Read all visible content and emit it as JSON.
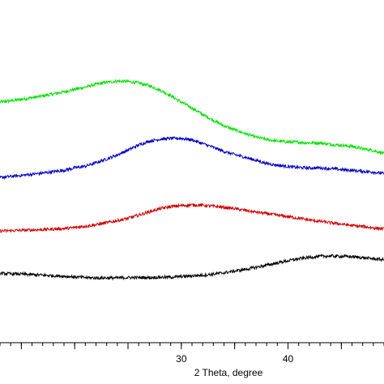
{
  "chart_data": {
    "type": "line",
    "xlabel": "2 Theta, degree",
    "ylabel": "",
    "xlim": [
      13,
      49
    ],
    "ylim": [
      0,
      100
    ],
    "x_ticks": [
      30,
      40
    ],
    "x_tick_labels": [
      "30",
      "40"
    ],
    "grid": false,
    "legend": "none",
    "series": [
      {
        "color": "#00e000",
        "x": [
          13,
          15,
          17,
          19,
          20,
          21,
          22,
          23,
          24,
          25,
          26,
          27,
          28,
          29,
          30,
          31,
          32,
          33,
          34,
          35,
          36,
          37,
          38,
          39,
          40,
          41,
          42,
          43,
          44,
          45,
          46,
          47,
          48,
          49
        ],
        "values": [
          70.2,
          71.0,
          72.0,
          73.2,
          73.9,
          74.6,
          75.4,
          76.0,
          76.3,
          76.2,
          75.8,
          75.0,
          73.7,
          72.1,
          70.2,
          68.5,
          66.6,
          64.9,
          63.3,
          62.1,
          61.0,
          60.0,
          59.3,
          58.8,
          58.6,
          58.5,
          58.3,
          58.3,
          57.9,
          57.6,
          57.3,
          56.6,
          56.1,
          55.2
        ]
      },
      {
        "color": "#0000c0",
        "x": [
          13,
          15,
          17,
          19,
          20,
          21,
          22,
          23,
          24,
          25,
          26,
          27,
          28,
          29,
          30,
          31,
          32,
          33,
          34,
          35,
          36,
          37,
          38,
          39,
          40,
          41,
          42,
          43,
          44,
          45,
          46,
          47,
          48,
          49
        ],
        "values": [
          48.2,
          48.8,
          49.5,
          50.3,
          51.0,
          51.5,
          52.5,
          53.6,
          54.8,
          56.2,
          57.7,
          58.8,
          59.4,
          59.6,
          59.6,
          59.2,
          58.1,
          57.0,
          55.8,
          54.9,
          54.1,
          53.2,
          52.3,
          51.8,
          51.4,
          51.1,
          51.0,
          51.0,
          50.8,
          50.5,
          50.3,
          50.0,
          49.8,
          49.3
        ]
      },
      {
        "color": "#d00000",
        "x": [
          13,
          15,
          17,
          19,
          20,
          21,
          22,
          23,
          24,
          25,
          26,
          27,
          28,
          29,
          30,
          31,
          32,
          33,
          34,
          35,
          36,
          37,
          38,
          39,
          40,
          41,
          42,
          43,
          44,
          45,
          46,
          47,
          48,
          49
        ],
        "values": [
          32.6,
          32.8,
          33.0,
          33.3,
          33.6,
          34.0,
          34.4,
          35.0,
          35.6,
          36.3,
          37.2,
          38.2,
          39.1,
          39.7,
          40.0,
          40.2,
          40.1,
          39.8,
          39.5,
          39.1,
          38.6,
          38.1,
          37.7,
          37.2,
          36.8,
          36.3,
          35.8,
          35.4,
          35.0,
          34.6,
          34.2,
          33.9,
          33.5,
          33.2
        ]
      },
      {
        "color": "#000000",
        "x": [
          13,
          15,
          17,
          19,
          20,
          21,
          22,
          23,
          24,
          25,
          26,
          27,
          28,
          29,
          30,
          31,
          32,
          33,
          34,
          35,
          36,
          37,
          38,
          39,
          40,
          41,
          42,
          43,
          44,
          45,
          46,
          47,
          48,
          49
        ],
        "values": [
          20.2,
          20.0,
          19.7,
          19.4,
          19.2,
          19.0,
          18.9,
          18.9,
          18.9,
          19.0,
          19.0,
          19.0,
          19.1,
          19.1,
          19.3,
          19.5,
          19.7,
          20.0,
          20.4,
          20.9,
          21.4,
          22.0,
          22.6,
          23.3,
          23.9,
          24.5,
          24.9,
          25.2,
          25.3,
          25.2,
          25.1,
          24.8,
          24.5,
          24.2
        ]
      }
    ]
  }
}
